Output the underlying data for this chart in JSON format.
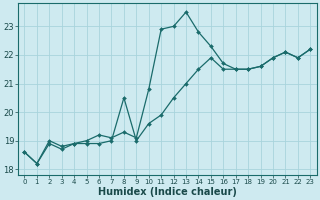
{
  "xlabel": "Humidex (Indice chaleur)",
  "background_color": "#ceeaf0",
  "grid_color": "#a8d4dc",
  "line_color": "#1a6b6b",
  "x": [
    0,
    1,
    2,
    3,
    4,
    5,
    6,
    7,
    8,
    9,
    10,
    11,
    12,
    13,
    14,
    15,
    16,
    17,
    18,
    19,
    20,
    21,
    22,
    23
  ],
  "series1": [
    18.6,
    18.2,
    18.9,
    18.7,
    18.9,
    19.0,
    19.2,
    19.1,
    19.3,
    19.1,
    20.8,
    22.9,
    23.0,
    23.5,
    22.8,
    22.3,
    21.7,
    21.5,
    21.5,
    21.6,
    21.9,
    22.1,
    21.9,
    22.2
  ],
  "series2": [
    18.6,
    18.2,
    19.0,
    18.8,
    18.9,
    18.9,
    18.9,
    19.0,
    20.5,
    19.0,
    19.6,
    19.9,
    20.5,
    21.0,
    21.5,
    21.9,
    21.5,
    21.5,
    21.5,
    21.6,
    21.9,
    22.1,
    21.9,
    22.2
  ],
  "ylim": [
    17.8,
    23.8
  ],
  "yticks": [
    18,
    19,
    20,
    21,
    22,
    23
  ],
  "xticks": [
    0,
    1,
    2,
    3,
    4,
    5,
    6,
    7,
    8,
    9,
    10,
    11,
    12,
    13,
    14,
    15,
    16,
    17,
    18,
    19,
    20,
    21,
    22,
    23
  ]
}
